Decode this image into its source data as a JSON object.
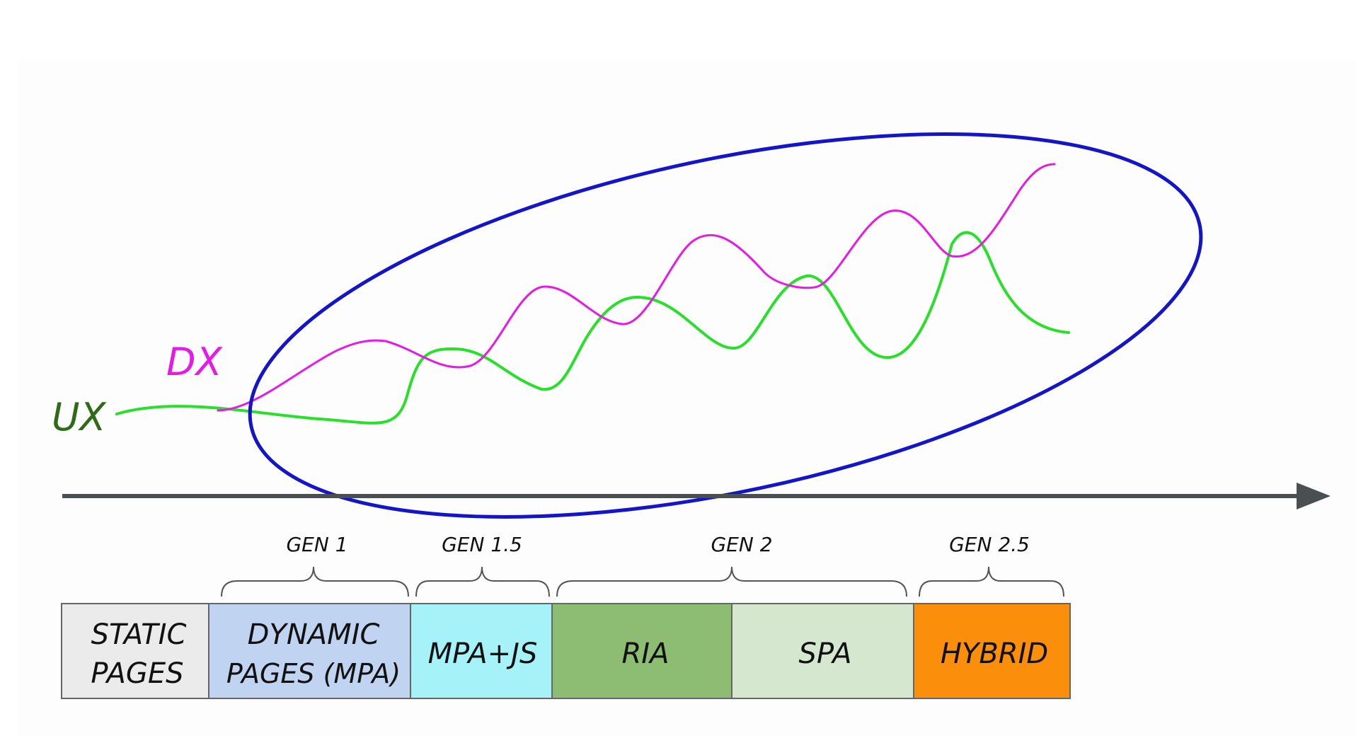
{
  "labels": {
    "dx": "DX",
    "ux": "UX"
  },
  "colors": {
    "background": "#fdfdfd",
    "dx_line": "#e619e6",
    "ux_line": "#28e02a",
    "ux_label": "#2e6b16",
    "dx_label": "#e619e6",
    "ellipse": "#1414c8",
    "axis": "#4a4f52"
  },
  "brackets": [
    {
      "id": "gen-1",
      "label": "GEN 1"
    },
    {
      "id": "gen-1-5",
      "label": "GEN 1.5"
    },
    {
      "id": "gen-2",
      "label": "GEN 2"
    },
    {
      "id": "gen-2-5",
      "label": "GEN 2.5"
    }
  ],
  "stages": [
    {
      "id": "static-pages",
      "lines": [
        "STATIC",
        "PAGES"
      ],
      "color": "#ebebeb"
    },
    {
      "id": "dynamic-pages",
      "lines": [
        "DYNAMIC",
        "PAGES (MPA)"
      ],
      "color": "#c0d4f2"
    },
    {
      "id": "mpa-js",
      "lines": [
        "MPA+JS"
      ],
      "color": "#a6f2f9"
    },
    {
      "id": "ria",
      "lines": [
        "RIA"
      ],
      "color": "#8cbd72"
    },
    {
      "id": "spa",
      "lines": [
        "SPA"
      ],
      "color": "#d5e7cf"
    },
    {
      "id": "hybrid",
      "lines": [
        "HYBRID"
      ],
      "color": "#fb8f0c"
    }
  ]
}
